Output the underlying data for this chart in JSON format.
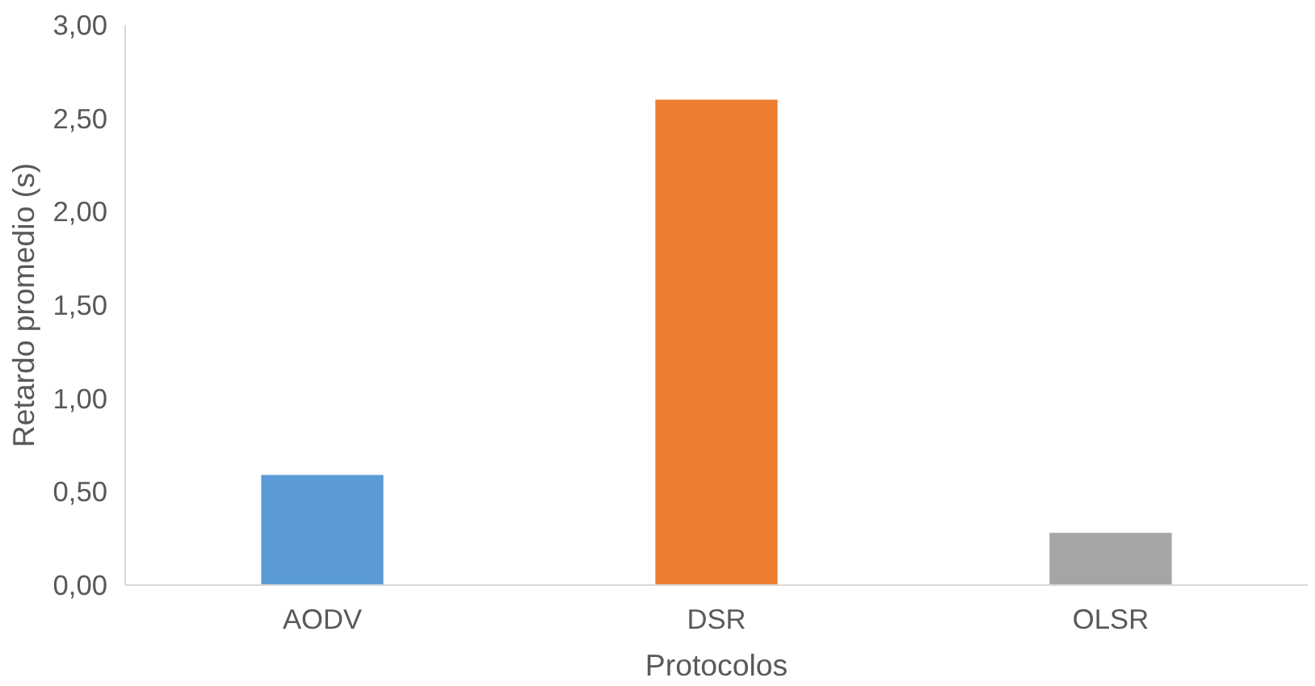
{
  "chart_data": {
    "type": "bar",
    "xlabel": "Protocolos",
    "ylabel": "Retardo promedio (s)",
    "categories": [
      "AODV",
      "DSR",
      "OLSR"
    ],
    "values": [
      0.59,
      2.6,
      0.28
    ],
    "colors": [
      "#5b9bd5",
      "#ed7d31",
      "#a5a5a5"
    ],
    "ylim": [
      0,
      3
    ],
    "yticks": [
      {
        "value": 0,
        "label": "0,00"
      },
      {
        "value": 0.5,
        "label": "0,50"
      },
      {
        "value": 1,
        "label": "1,00"
      },
      {
        "value": 1.5,
        "label": "1,50"
      },
      {
        "value": 2,
        "label": "2,00"
      },
      {
        "value": 2.5,
        "label": "2,50"
      },
      {
        "value": 3,
        "label": "3,00"
      }
    ],
    "grid": false
  }
}
